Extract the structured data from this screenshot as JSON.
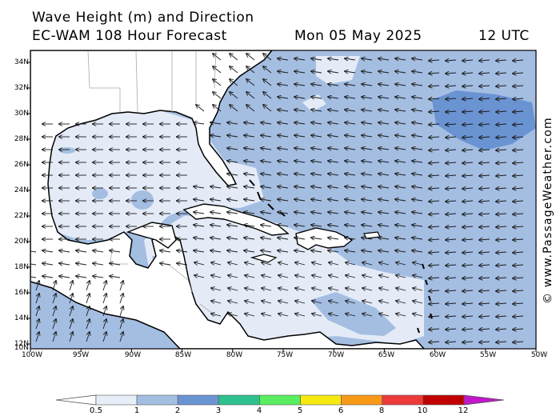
{
  "title": {
    "line1": "Wave Height (m) and Direction",
    "line2": "EC-WAM 108 Hour Forecast",
    "date": "Mon 05 May 2025",
    "time": "12 UTC"
  },
  "credit": "© www.PassageWeather.com",
  "lat_labels": [
    "34N",
    "32N",
    "30N",
    "28N",
    "26N",
    "24N",
    "22N",
    "20N",
    "18N",
    "16N",
    "14N",
    "12N",
    "10N"
  ],
  "lon_labels": [
    "100W",
    "95W",
    "90W",
    "85W",
    "80W",
    "75W",
    "70W",
    "65W",
    "60W",
    "55W",
    "50W"
  ],
  "colorbar": {
    "labels": [
      "0.5",
      "1",
      "2",
      "3",
      "4",
      "5",
      "6",
      "8",
      "10",
      "12"
    ],
    "colors": [
      "#e8eef8",
      "#a4bee2",
      "#6a93d2",
      "#2fc08f",
      "#58ee60",
      "#f8ea10",
      "#f89a18",
      "#ec3a3a",
      "#c00000",
      "#c018c8"
    ]
  },
  "palette": {
    "land": "#ffffff",
    "calm": "#e4ebf7",
    "light": "#a4bee2",
    "moderate": "#6a93d2",
    "arrow": "#1a1a1a",
    "coast": "#000000",
    "border": "#aaaaaa"
  },
  "wave_direction": "mostly easterly swell arriving from the Atlantic; southerly/northeasterly in the Pacific corner"
}
